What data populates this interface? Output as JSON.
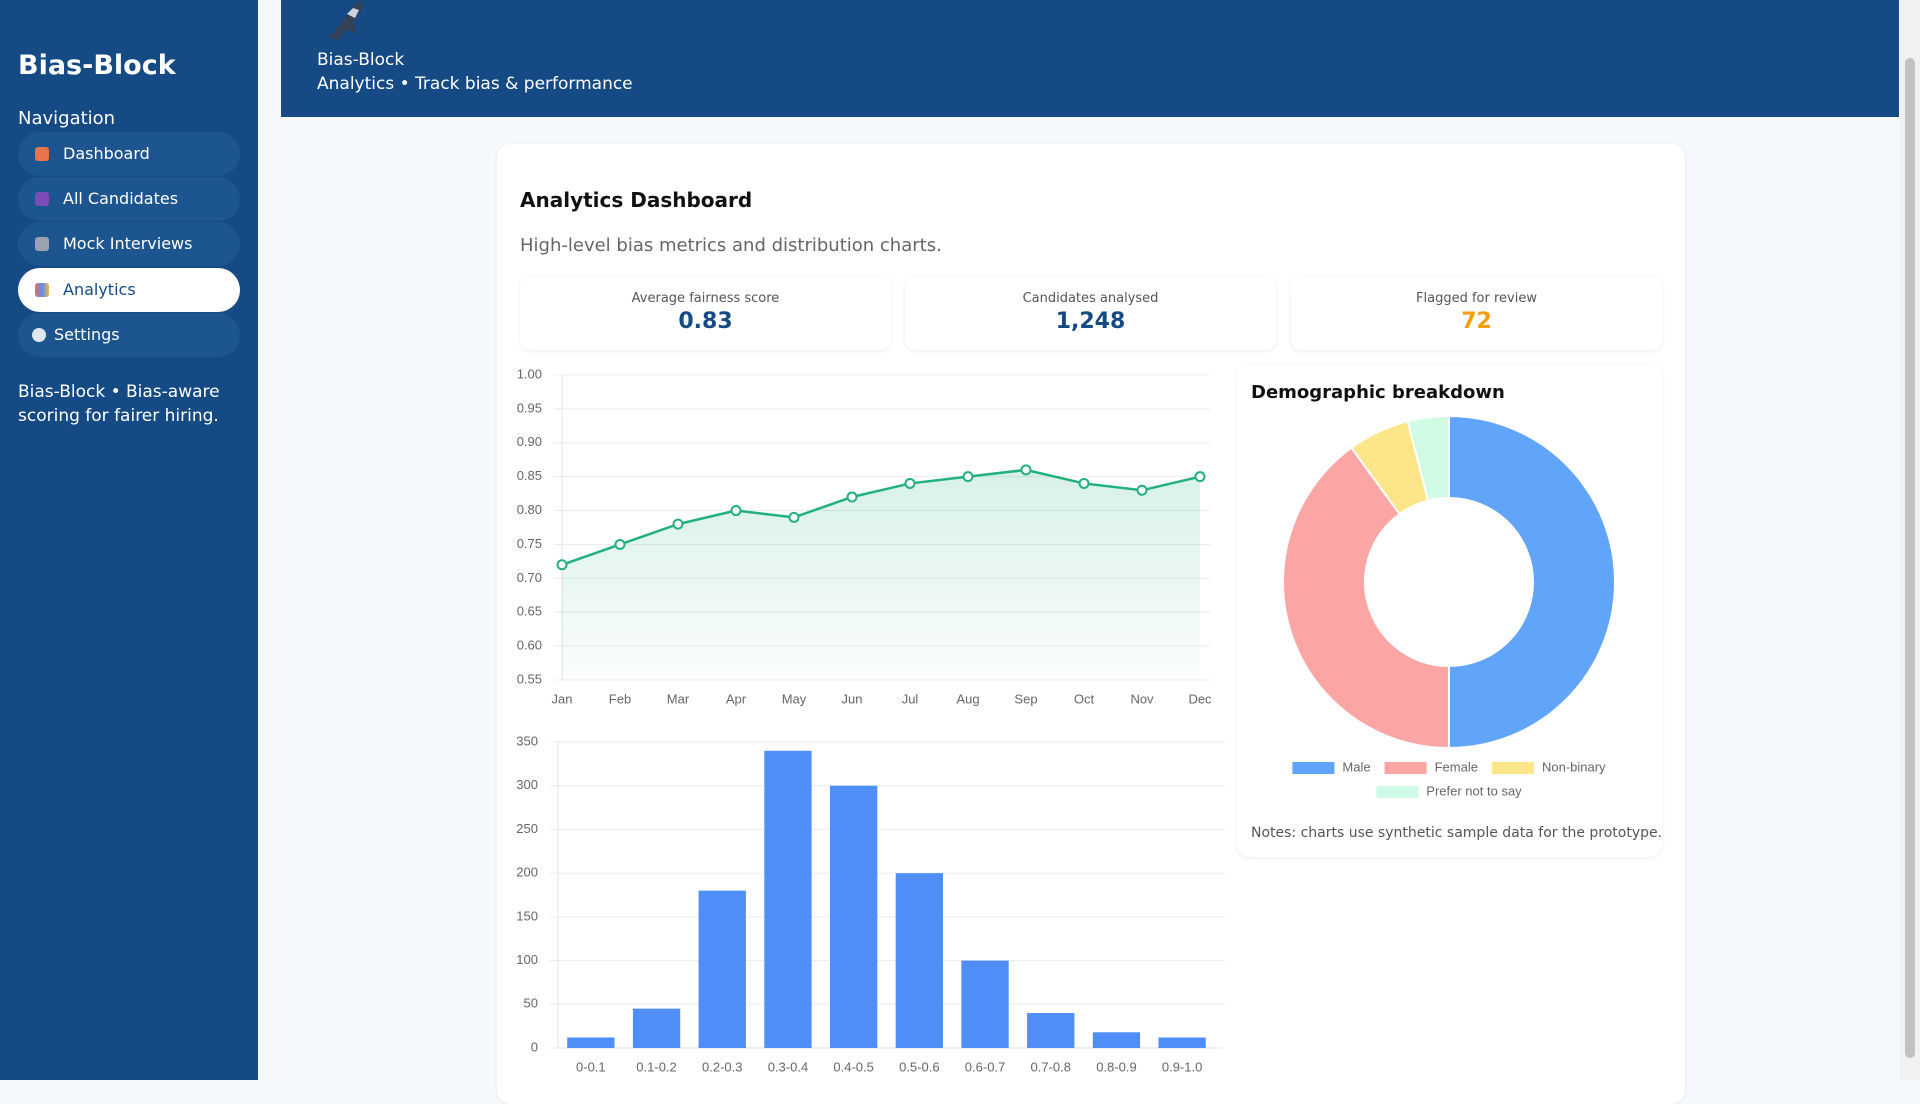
{
  "sidebar": {
    "brand": "Bias-Block",
    "nav_title": "Navigation",
    "nav": [
      "Dashboard",
      "All Candidates",
      "Mock Interviews",
      "Analytics",
      "Settings"
    ],
    "footer": "Bias-Block • Bias-aware scoring for fairer hiring."
  },
  "header": {
    "brand": "Bias-Block",
    "subtitle": "Analytics • Track bias & performance"
  },
  "main": {
    "title": "Analytics Dashboard",
    "description": "High-level bias metrics and distribution charts.",
    "stats": [
      {
        "label": "Average fairness score",
        "value": "0.83"
      },
      {
        "label": "Candidates analysed",
        "value": "1,248"
      },
      {
        "label": "Flagged for review",
        "value": "72"
      }
    ],
    "notes": "Notes: charts use synthetic sample data for the prototype."
  },
  "chart_data": [
    {
      "type": "line",
      "categories": [
        "Jan",
        "Feb",
        "Mar",
        "Apr",
        "May",
        "Jun",
        "Jul",
        "Aug",
        "Sep",
        "Oct",
        "Nov",
        "Dec"
      ],
      "values": [
        0.72,
        0.75,
        0.78,
        0.8,
        0.79,
        0.82,
        0.84,
        0.85,
        0.86,
        0.84,
        0.83,
        0.85
      ],
      "color": "#22b07d",
      "ylim": [
        0.55,
        1.0
      ],
      "yticks": [
        {
          "value": 0.55,
          "label": "0.55"
        },
        {
          "value": 0.6,
          "label": "0.60"
        },
        {
          "value": 0.65,
          "label": "0.65"
        },
        {
          "value": 0.7,
          "label": "0.70"
        },
        {
          "value": 0.75,
          "label": "0.75"
        },
        {
          "value": 0.8,
          "label": "0.80"
        },
        {
          "value": 0.85,
          "label": "0.85"
        },
        {
          "value": 0.9,
          "label": "0.90"
        },
        {
          "value": 0.95,
          "label": "0.95"
        },
        {
          "value": 1.0,
          "label": "1.00"
        }
      ],
      "grid": true
    },
    {
      "type": "bar",
      "categories": [
        "0-0.1",
        "0.1-0.2",
        "0.2-0.3",
        "0.3-0.4",
        "0.4-0.5",
        "0.5-0.6",
        "0.6-0.7",
        "0.7-0.8",
        "0.8-0.9",
        "0.9-1.0"
      ],
      "values": [
        12,
        45,
        180,
        340,
        300,
        200,
        100,
        40,
        18,
        12
      ],
      "color": "#4f8ef7",
      "ylim": [
        0,
        350
      ],
      "yticks": [
        0,
        50,
        100,
        150,
        200,
        250,
        300,
        350
      ],
      "grid": true
    },
    {
      "type": "doughnut",
      "title": "Demographic breakdown",
      "categories": [
        "Male",
        "Female",
        "Non-binary",
        "Prefer not to say"
      ],
      "values": [
        50,
        40,
        6,
        4
      ],
      "colors": [
        "#60a5fa",
        "#fca5a5",
        "#fde68a",
        "#d1fae5"
      ],
      "legend": "bottom"
    }
  ]
}
